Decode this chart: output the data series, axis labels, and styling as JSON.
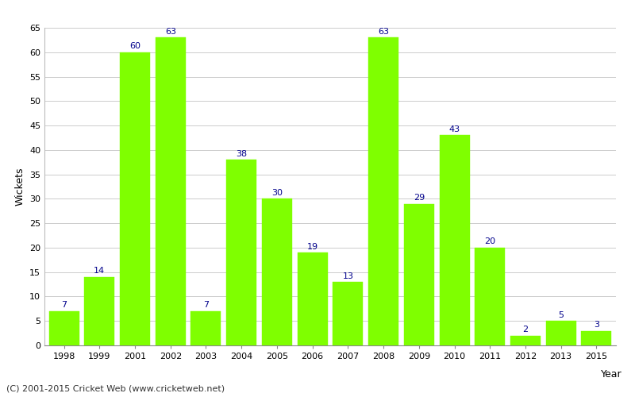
{
  "years": [
    "1998",
    "1999",
    "2001",
    "2002",
    "2003",
    "2004",
    "2005",
    "2006",
    "2007",
    "2008",
    "2009",
    "2010",
    "2011",
    "2012",
    "2013",
    "2015"
  ],
  "wickets": [
    7,
    14,
    60,
    63,
    7,
    38,
    30,
    19,
    13,
    63,
    29,
    43,
    20,
    2,
    5,
    3
  ],
  "bar_color": "#7fff00",
  "bar_edge_color": "#7fff00",
  "label_color": "#00008b",
  "xlabel": "Year",
  "ylabel": "Wickets",
  "ylim": [
    0,
    65
  ],
  "yticks": [
    0,
    5,
    10,
    15,
    20,
    25,
    30,
    35,
    40,
    45,
    50,
    55,
    60,
    65
  ],
  "footnote": "(C) 2001-2015 Cricket Web (www.cricketweb.net)",
  "background_color": "#ffffff",
  "grid_color": "#cccccc",
  "label_fontsize": 8,
  "axis_label_fontsize": 9,
  "footnote_fontsize": 8,
  "bar_width": 0.85
}
